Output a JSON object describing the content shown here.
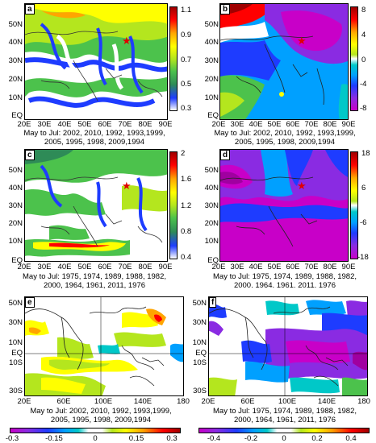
{
  "panels": [
    {
      "label": "a",
      "yticks": [
        "50N",
        "40N",
        "30N",
        "20N",
        "10N",
        "EQ"
      ],
      "xticks": [
        "20E",
        "30E",
        "40E",
        "50E",
        "60E",
        "70E",
        "80E",
        "90E"
      ],
      "caption_line1": "May to Jul: 2002, 2010, 1992, 1993,1999,",
      "caption_line2": "2005, 1995, 1998, 2009,1994",
      "colorbar_ticks": [
        "1.1",
        "0.9",
        "0.7",
        "0.5",
        "0.3"
      ],
      "colorbar_colors": [
        "#ffffff",
        "#1e3cff",
        "#2e8b57",
        "#4cc24c",
        "#b4e61e",
        "#ffff00",
        "#ffa500",
        "#ff0000",
        "#a00000"
      ]
    },
    {
      "label": "b",
      "yticks": [
        "50N",
        "40N",
        "30N",
        "20N",
        "10N",
        "EQ"
      ],
      "xticks": [
        "20E",
        "30E",
        "40E",
        "50E",
        "60E",
        "70E",
        "80E",
        "90E"
      ],
      "caption_line1": "May to Jul: 2002, 2010, 1992, 1993,1999,",
      "caption_line2": "2005, 1995, 1998, 2009,1994",
      "colorbar_ticks": [
        "8",
        "4",
        "0",
        "-4",
        "-8"
      ],
      "colorbar_colors": [
        "#a00000",
        "#ff0000",
        "#ffa500",
        "#ffff00",
        "#b4e61e",
        "#00c8c8",
        "#00a0ff",
        "#1e3cff",
        "#8a2be2",
        "#c800c8"
      ]
    },
    {
      "label": "c",
      "yticks": [
        "50N",
        "40N",
        "30N",
        "20N",
        "10N",
        "EQ"
      ],
      "xticks": [
        "20E",
        "30E",
        "40E",
        "50E",
        "60E",
        "70E",
        "80E",
        "90E"
      ],
      "caption_line1": "May to Jul: 1975, 1974, 1989, 1988, 1982,",
      "caption_line2": "2000, 1964, 1961, 2011, 1976",
      "colorbar_ticks": [
        "2",
        "1.6",
        "1.2",
        "0.8",
        "0.4"
      ],
      "colorbar_colors": [
        "#ffffff",
        "#1e3cff",
        "#2e8b57",
        "#4cc24c",
        "#b4e61e",
        "#ffff00",
        "#ffa500",
        "#ff0000",
        "#a00000"
      ]
    },
    {
      "label": "d",
      "yticks": [
        "50N",
        "40N",
        "30N",
        "20N",
        "10N",
        "EQ"
      ],
      "xticks": [
        "20E",
        "30E",
        "40E",
        "50E",
        "60E",
        "70E",
        "80E",
        "90E"
      ],
      "caption_line1": "May to Jul: 1975, 1974, 1989, 1988, 1982,",
      "caption_line2": "2000. 1964. 1961. 2011. 1976",
      "colorbar_ticks": [
        "18",
        "6",
        "-6",
        "-18"
      ],
      "colorbar_colors": [
        "#a00000",
        "#ff0000",
        "#ffa500",
        "#ffff00",
        "#b4e61e",
        "#00c8c8",
        "#00a0ff",
        "#1e3cff",
        "#8a2be2",
        "#c800c8"
      ]
    },
    {
      "label": "e",
      "yticks": [
        "50N",
        "30N",
        "10N",
        "EQ",
        "10S",
        "30S"
      ],
      "xticks": [
        "20E",
        "60E",
        "100E",
        "140E",
        "180"
      ],
      "caption_line1": "May to Jul: 2002, 2010, 1992, 1993,1999,",
      "caption_line2": "2005, 1995, 1998, 2009,1994",
      "colorbar_ticks": [
        "-0.3",
        "-0.15",
        "0",
        "0.15",
        "0.3"
      ],
      "colorbar_colors": [
        "#c800c8",
        "#8a2be2",
        "#1e3cff",
        "#00a0ff",
        "#00c8c8",
        "#ffffff",
        "#ffffff",
        "#b4e61e",
        "#ffff00",
        "#ffa500",
        "#ff0000",
        "#a00000"
      ]
    },
    {
      "label": "f",
      "yticks": [
        "50N",
        "30N",
        "10N",
        "EQ",
        "10S",
        "30S"
      ],
      "xticks": [
        "20E",
        "60E",
        "100E",
        "140E",
        "180"
      ],
      "caption_line1": "May to Jul: 1975, 1974, 1989, 1988, 1982,",
      "caption_line2": "2000, 1964, 1961, 2011, 1976",
      "colorbar_ticks": [
        "-0.4",
        "-0.2",
        "0",
        "0.2",
        "0.4"
      ],
      "colorbar_colors": [
        "#c800c8",
        "#8a2be2",
        "#1e3cff",
        "#00a0ff",
        "#00c8c8",
        "#ffffff",
        "#ffffff",
        "#b4e61e",
        "#ffff00",
        "#ffa500",
        "#ff0000",
        "#a00000"
      ]
    }
  ]
}
